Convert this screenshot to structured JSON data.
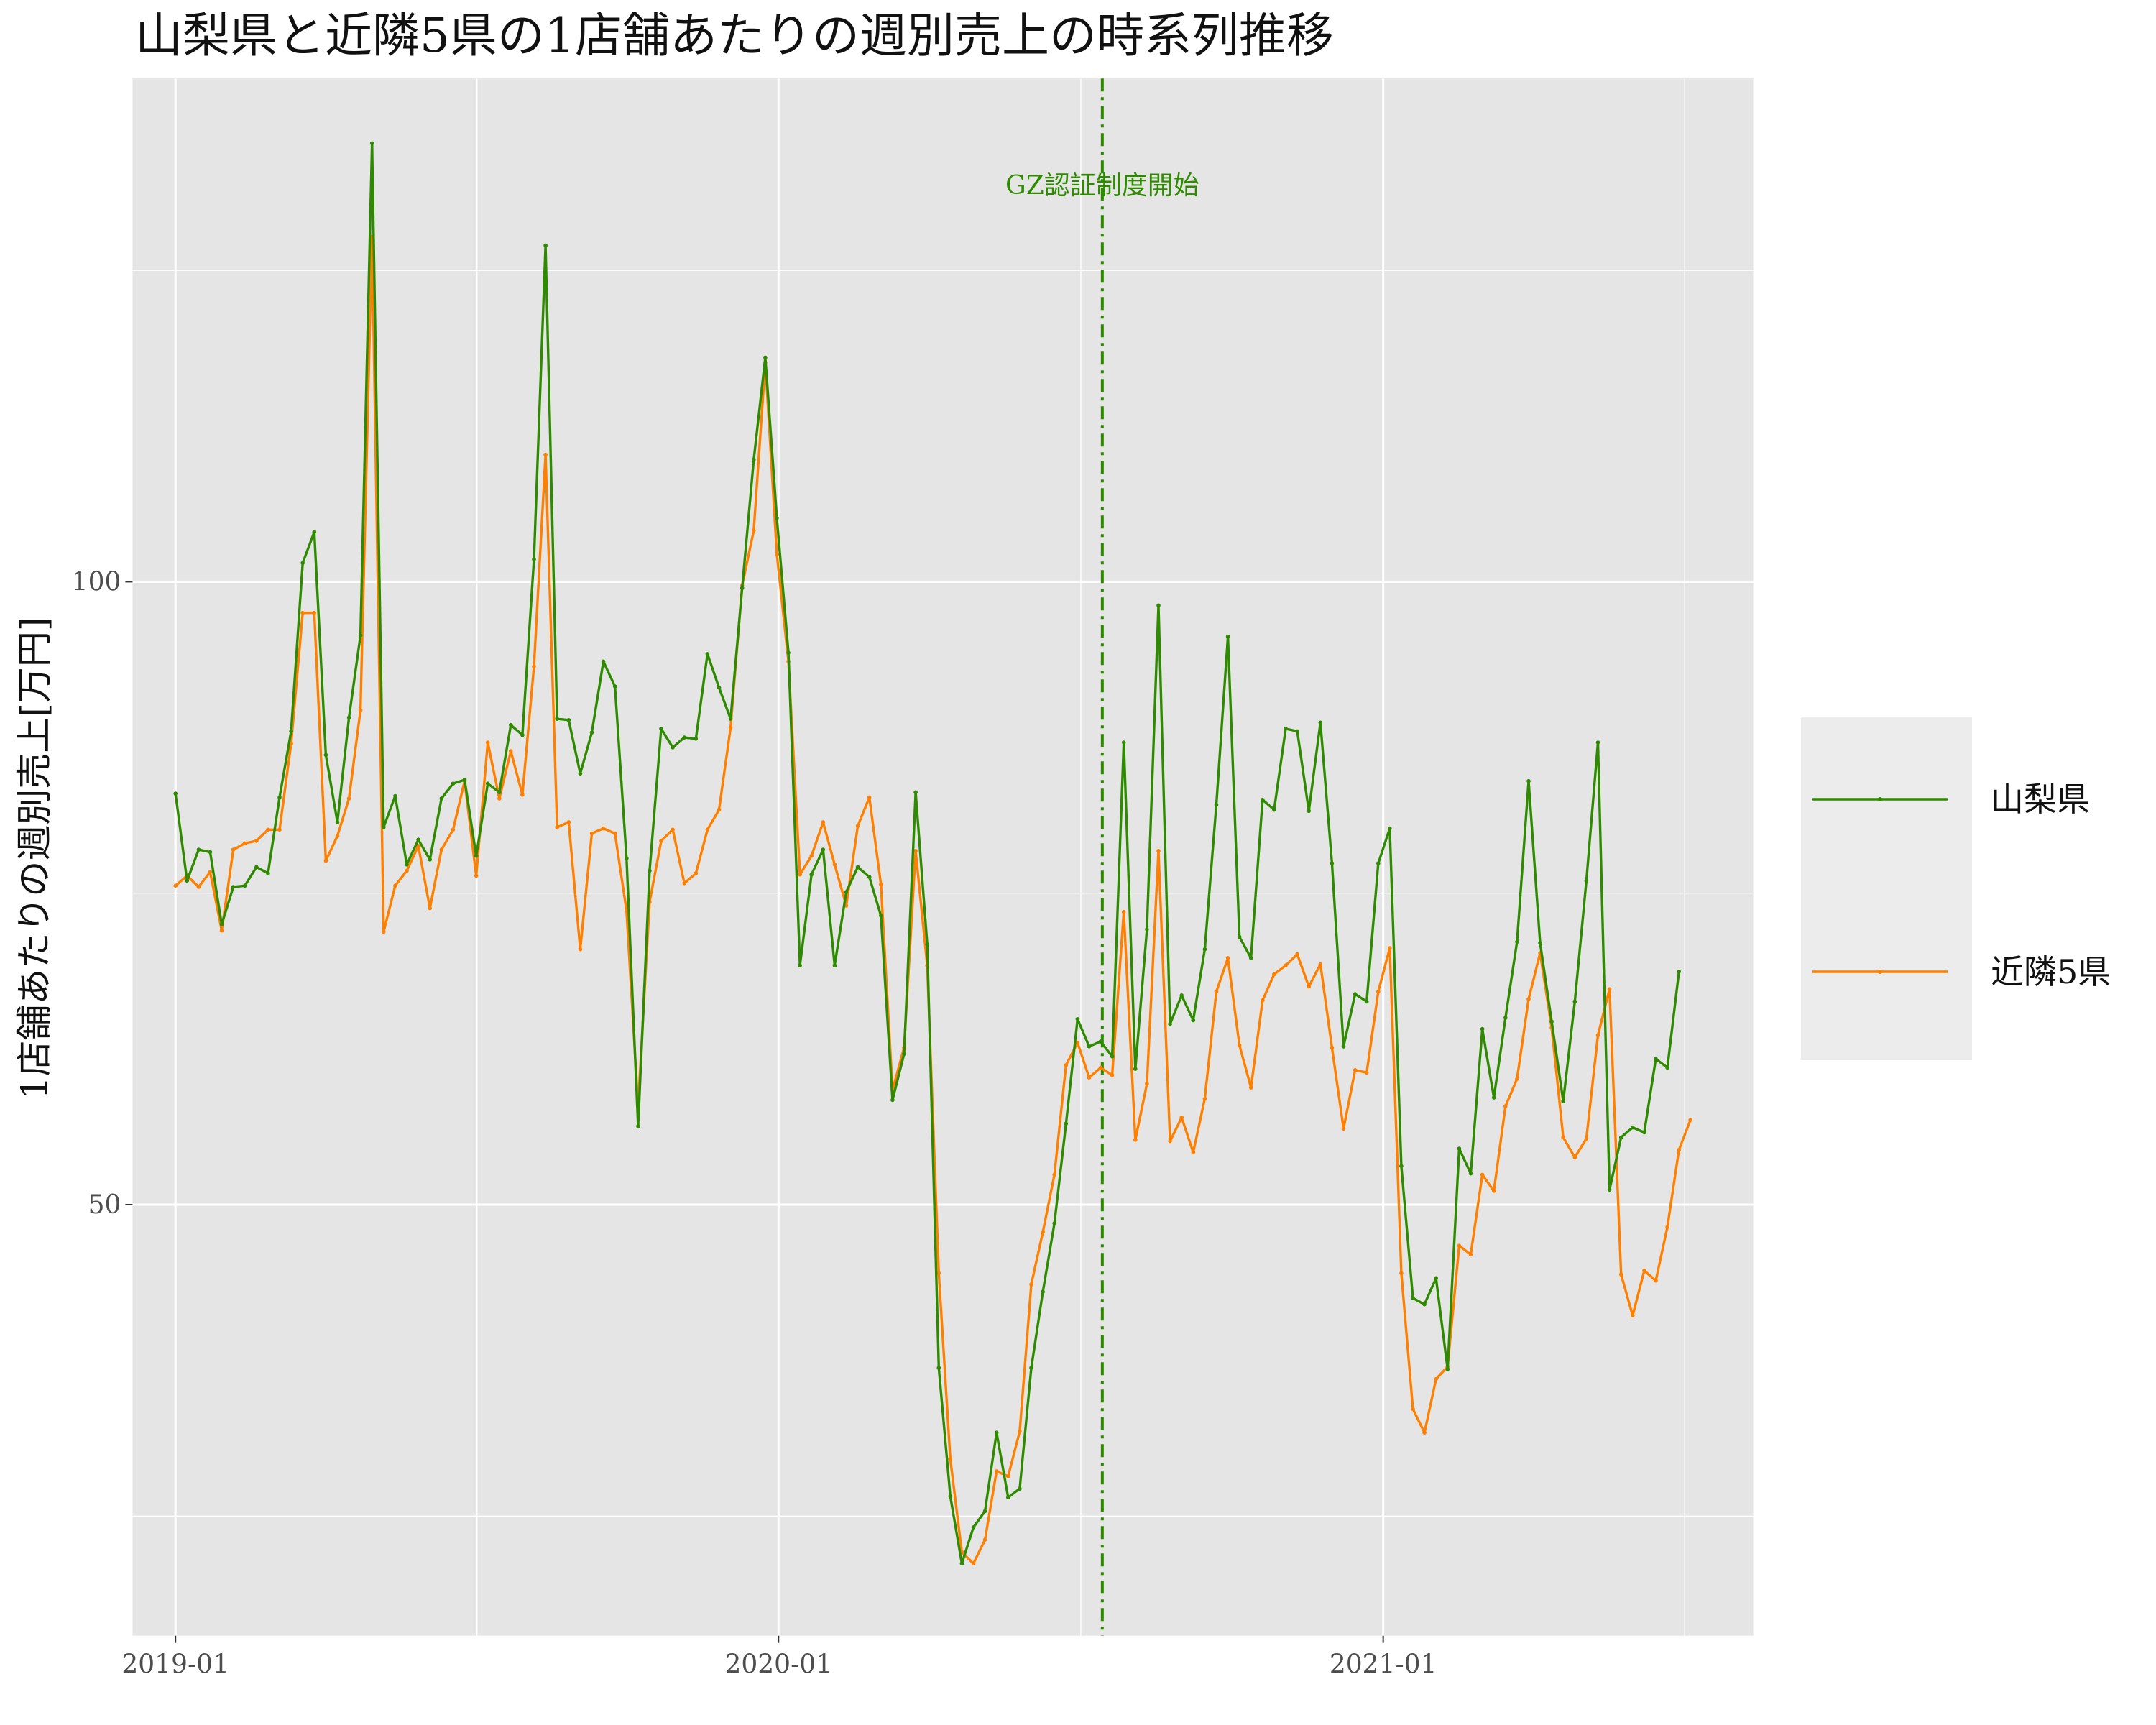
{
  "chart_data": {
    "type": "line",
    "title": "山梨県と近隣5県の1店舗あたりの週別売上の時系列推移",
    "xlabel": "",
    "ylabel": "1店舗あたりの週別売上[万円]",
    "x_ticks": [
      "2019-01",
      "2020-01",
      "2021-01"
    ],
    "y_ticks": [
      50,
      100
    ],
    "ylim": [
      15.4,
      140.4
    ],
    "xlim": [
      "2018-12-06",
      "2021-08-13"
    ],
    "grid": true,
    "legend_position": "right",
    "annotation": {
      "text": "GZ認証制度開始",
      "x": "2020-07-15"
    },
    "start_date": "2019-01-01",
    "series": [
      {
        "name": "山梨県",
        "color": "#2e8b00",
        "values": [
          83,
          76,
          78.5,
          78.3,
          72.5,
          75.5,
          75.6,
          77.1,
          76.6,
          82.7,
          88,
          101.5,
          104,
          86.1,
          80.7,
          89.1,
          95.7,
          135.2,
          80.3,
          82.8,
          77.3,
          79.3,
          77.7,
          82.6,
          83.8,
          84.1,
          78,
          83.8,
          83.1,
          88.5,
          87.7,
          101.8,
          127,
          89,
          88.9,
          84.6,
          87.9,
          93.6,
          91.6,
          77.8,
          56.3,
          76.8,
          88.2,
          86.7,
          87.5,
          87.4,
          94.2,
          91.5,
          89,
          99.5,
          109.8,
          118,
          105.1,
          94.3,
          69.2,
          76.5,
          78.5,
          69.2,
          75.1,
          77.1,
          76.3,
          73.2,
          58.4,
          62.1,
          83.1,
          70.9,
          36.9,
          26.6,
          21.2,
          24.1,
          25.4,
          31.7,
          26.5,
          27.2,
          36.9,
          43,
          48.5,
          56.5,
          64.9,
          62.7,
          63.1,
          61.9,
          87.1,
          60.9,
          72.1,
          98.1,
          64.5,
          66.8,
          64.8,
          70.5,
          82.1,
          95.6,
          71.5,
          69.8,
          82.5,
          81.7,
          88.2,
          88,
          81.6,
          88.7,
          77.4,
          62.7,
          66.9,
          66.3,
          77.4,
          80.2,
          53.1,
          42.5,
          42,
          44.1,
          36.8,
          54.5,
          52.5,
          64.1,
          58.6,
          65,
          71.1,
          84,
          71,
          64.7,
          58.3,
          66.3,
          76,
          87.1,
          51.2,
          55.4,
          56.2,
          55.8,
          61.7,
          61,
          68.7
        ]
      },
      {
        "name": "近隣5県",
        "color": "#ff8000",
        "values": [
          75.6,
          76.4,
          75.5,
          76.7,
          72,
          78.5,
          79,
          79.2,
          80.1,
          80.1,
          87,
          97.5,
          97.5,
          77.6,
          79.6,
          82.6,
          89.7,
          127.7,
          71.9,
          75.6,
          76.8,
          78.8,
          73.8,
          78.5,
          80.1,
          84,
          76.4,
          87.1,
          82.6,
          86.4,
          82.9,
          93.2,
          110.2,
          80.3,
          80.7,
          70.5,
          79.8,
          80.2,
          79.8,
          73.6,
          57.9,
          74.3,
          79.2,
          80.1,
          75.8,
          76.6,
          80.1,
          81.7,
          88.3,
          99.7,
          104.1,
          117.6,
          102.2,
          93.6,
          76.5,
          78,
          80.7,
          77.3,
          74,
          80.4,
          82.7,
          75.7,
          59.2,
          62.6,
          78.4,
          69.2,
          44.5,
          29.6,
          22.1,
          21.2,
          23.1,
          28.6,
          28.2,
          31.8,
          43.6,
          47.8,
          52.4,
          61.2,
          63,
          60.2,
          61,
          60.4,
          73.5,
          55.2,
          59.7,
          78.4,
          55.1,
          57,
          54.2,
          58.5,
          67.1,
          69.8,
          62.8,
          59.4,
          66.4,
          68.5,
          69.2,
          70.1,
          67.5,
          69.3,
          62.6,
          56.1,
          60.8,
          60.6,
          67.1,
          70.6,
          44.5,
          33.6,
          31.7,
          36,
          37,
          46.7,
          46,
          52.4,
          51.1,
          57.9,
          60.1,
          66.5,
          70.2,
          64.2,
          55.4,
          53.8,
          55.3,
          63.6,
          67.3,
          44.4,
          41.1,
          44.7,
          43.9,
          48.2,
          54.4,
          56.8
        ]
      }
    ]
  }
}
